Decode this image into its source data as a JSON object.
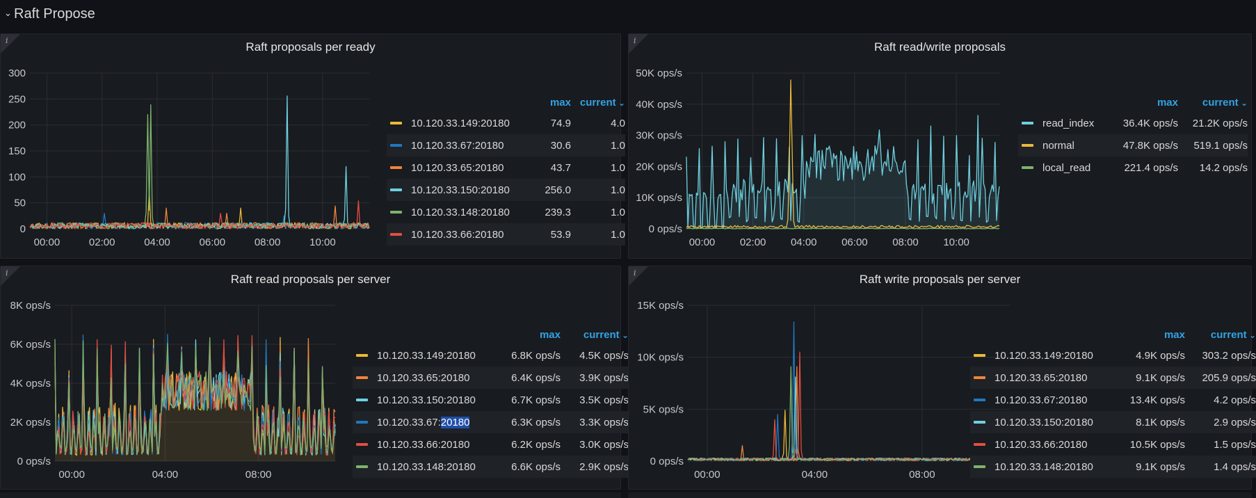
{
  "row": {
    "title": "Raft Propose",
    "chevron_icon": "chevron-down-icon"
  },
  "panels": [
    {
      "id": "p1",
      "title": "Raft proposals per ready",
      "legend_headers": {
        "max": "max",
        "current": "current"
      },
      "legend": [
        {
          "name": "10.120.33.149:20180",
          "color": "#eab839",
          "max": "74.9",
          "current": "4.0"
        },
        {
          "name": "10.120.33.67:20180",
          "color": "#1f78c1",
          "max": "30.6",
          "current": "1.0"
        },
        {
          "name": "10.120.33.65:20180",
          "color": "#ef843c",
          "max": "43.7",
          "current": "1.0"
        },
        {
          "name": "10.120.33.150:20180",
          "color": "#6ed0e0",
          "max": "256.0",
          "current": "1.0"
        },
        {
          "name": "10.120.33.148:20180",
          "color": "#7eb26d",
          "max": "239.3",
          "current": "1.0"
        },
        {
          "name": "10.120.33.66:20180",
          "color": "#e24d42",
          "max": "53.9",
          "current": "1.0"
        }
      ],
      "chart_data": {
        "type": "line",
        "yticks": [
          "300",
          "250",
          "200",
          "150",
          "100",
          "50",
          "0"
        ],
        "ylim": [
          0,
          300
        ],
        "xticks": [
          "00:00",
          "02:00",
          "04:00",
          "06:00",
          "08:00",
          "10:00"
        ],
        "grid": true
      }
    },
    {
      "id": "p2",
      "title": "Raft read/write proposals",
      "legend_headers": {
        "max": "max",
        "current": "current"
      },
      "legend": [
        {
          "name": "read_index",
          "color": "#6ed0e0",
          "max": "36.4K ops/s",
          "current": "21.2K ops/s"
        },
        {
          "name": "normal",
          "color": "#eab839",
          "max": "47.8K ops/s",
          "current": "519.1 ops/s"
        },
        {
          "name": "local_read",
          "color": "#7eb26d",
          "max": "221.4 ops/s",
          "current": "14.2 ops/s"
        }
      ],
      "chart_data": {
        "type": "line",
        "yticks": [
          "50K ops/s",
          "40K ops/s",
          "30K ops/s",
          "20K ops/s",
          "10K ops/s",
          "0 ops/s"
        ],
        "ylim": [
          0,
          50000
        ],
        "xticks": [
          "00:00",
          "02:00",
          "04:00",
          "06:00",
          "08:00",
          "10:00"
        ],
        "grid": true
      }
    },
    {
      "id": "p3",
      "title": "Raft read proposals per server",
      "legend_headers": {
        "max": "max",
        "current": "current"
      },
      "legend": [
        {
          "name": "10.120.33.149:20180",
          "color": "#eab839",
          "max": "6.8K ops/s",
          "current": "4.5K ops/s"
        },
        {
          "name": "10.120.33.65:20180",
          "color": "#ef843c",
          "max": "6.4K ops/s",
          "current": "3.9K ops/s"
        },
        {
          "name": "10.120.33.150:20180",
          "color": "#6ed0e0",
          "max": "6.7K ops/s",
          "current": "3.5K ops/s"
        },
        {
          "name": "10.120.33.67:20180",
          "name_prefix": "10.120.33.67:",
          "name_selected": "20180",
          "color": "#1f78c1",
          "max": "6.3K ops/s",
          "current": "3.3K ops/s"
        },
        {
          "name": "10.120.33.66:20180",
          "color": "#e24d42",
          "max": "6.2K ops/s",
          "current": "3.0K ops/s"
        },
        {
          "name": "10.120.33.148:20180",
          "color": "#7eb26d",
          "max": "6.6K ops/s",
          "current": "2.9K ops/s"
        }
      ],
      "chart_data": {
        "type": "area",
        "yticks": [
          "8K ops/s",
          "6K ops/s",
          "4K ops/s",
          "2K ops/s",
          "0 ops/s"
        ],
        "ylim": [
          0,
          8000
        ],
        "xticks": [
          "00:00",
          "04:00",
          "08:00"
        ],
        "grid": true
      }
    },
    {
      "id": "p4",
      "title": "Raft write proposals per server",
      "legend_headers": {
        "max": "max",
        "current": "current"
      },
      "legend": [
        {
          "name": "10.120.33.149:20180",
          "color": "#eab839",
          "max": "4.9K ops/s",
          "current": "303.2 ops/s"
        },
        {
          "name": "10.120.33.65:20180",
          "color": "#ef843c",
          "max": "9.1K ops/s",
          "current": "205.9 ops/s"
        },
        {
          "name": "10.120.33.67:20180",
          "color": "#1f78c1",
          "max": "13.4K ops/s",
          "current": "4.2 ops/s"
        },
        {
          "name": "10.120.33.150:20180",
          "color": "#6ed0e0",
          "max": "8.1K ops/s",
          "current": "2.9 ops/s"
        },
        {
          "name": "10.120.33.66:20180",
          "color": "#e24d42",
          "max": "10.5K ops/s",
          "current": "1.5 ops/s"
        },
        {
          "name": "10.120.33.148:20180",
          "color": "#7eb26d",
          "max": "9.1K ops/s",
          "current": "1.4 ops/s"
        }
      ],
      "chart_data": {
        "type": "line",
        "yticks": [
          "15K ops/s",
          "10K ops/s",
          "5K ops/s",
          "0 ops/s"
        ],
        "ylim": [
          0,
          15000
        ],
        "xticks": [
          "00:00",
          "04:00",
          "08:00"
        ],
        "grid": true
      }
    }
  ]
}
